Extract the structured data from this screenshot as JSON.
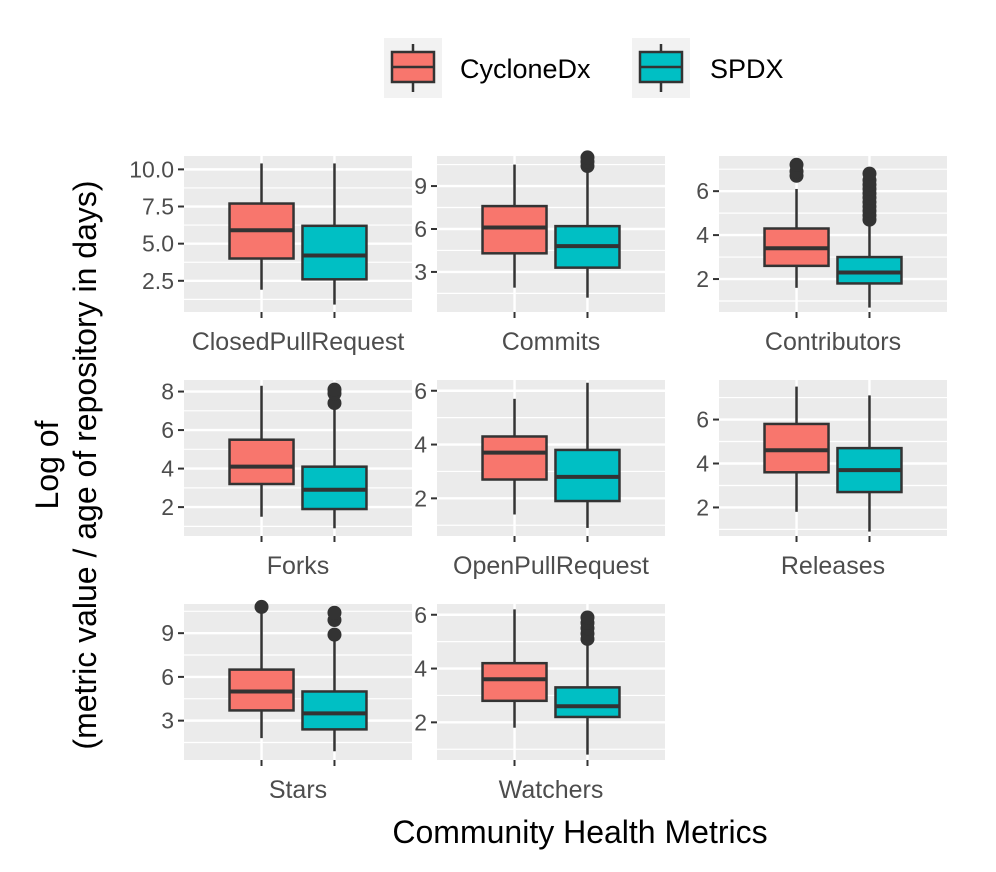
{
  "chart_data": {
    "type": "boxplot",
    "xlabel": "Community Health Metrics",
    "ylabel_line1": "Log of",
    "ylabel_line2": "(metric value / age of repository in days)",
    "colors": {
      "CycloneDx": "#f8766d",
      "SPDX": "#00bfc4",
      "panel": "#ebebeb",
      "grid": "#ffffff",
      "stroke": "#333333"
    },
    "legend": {
      "position": "top",
      "entries": [
        {
          "label": "CycloneDx",
          "color": "#f8766d"
        },
        {
          "label": "SPDX",
          "color": "#00bfc4"
        }
      ]
    },
    "panels": [
      {
        "name": "ClosedPullRequest",
        "ylim": [
          0.4,
          10.9
        ],
        "major_ticks": [
          2.5,
          5.0,
          7.5,
          10.0
        ],
        "tick_labels": [
          "2.5",
          "5.0",
          "7.5",
          "10.0"
        ],
        "minor_ticks": [
          1.25,
          3.75,
          6.25,
          8.75
        ],
        "boxes": [
          {
            "series": "CycloneDx",
            "min": 1.9,
            "q1": 4.0,
            "median": 5.9,
            "q3": 7.7,
            "max": 10.4,
            "outliers": []
          },
          {
            "series": "SPDX",
            "min": 0.9,
            "q1": 2.6,
            "median": 4.2,
            "q3": 6.2,
            "max": 10.4,
            "outliers": []
          }
        ]
      },
      {
        "name": "Commits",
        "ylim": [
          0.2,
          11.1
        ],
        "major_ticks": [
          3,
          6,
          9
        ],
        "tick_labels": [
          "3",
          "6",
          "9"
        ],
        "minor_ticks": [
          1.5,
          4.5,
          7.5,
          10.5
        ],
        "boxes": [
          {
            "series": "CycloneDx",
            "min": 1.9,
            "q1": 4.3,
            "median": 6.1,
            "q3": 7.6,
            "max": 10.5,
            "outliers": []
          },
          {
            "series": "SPDX",
            "min": 1.2,
            "q1": 3.3,
            "median": 4.8,
            "q3": 6.2,
            "max": 10.0,
            "outliers": [
              10.4,
              10.7,
              11.0
            ]
          }
        ]
      },
      {
        "name": "Contributors",
        "ylim": [
          0.5,
          7.6
        ],
        "major_ticks": [
          2,
          4,
          6
        ],
        "tick_labels": [
          "2",
          "4",
          "6"
        ],
        "minor_ticks": [
          1,
          3,
          5,
          7
        ],
        "boxes": [
          {
            "series": "CycloneDx",
            "min": 1.6,
            "q1": 2.6,
            "median": 3.4,
            "q3": 4.3,
            "max": 6.1,
            "outliers": [
              6.7,
              6.9,
              7.2
            ]
          },
          {
            "series": "SPDX",
            "min": 0.7,
            "q1": 1.8,
            "median": 2.3,
            "q3": 3.0,
            "max": 4.5,
            "outliers": [
              4.7,
              4.9,
              5.1,
              5.3,
              5.5,
              5.7,
              5.9,
              6.1,
              6.3,
              6.5,
              6.8
            ]
          }
        ]
      },
      {
        "name": "Forks",
        "ylim": [
          0.5,
          8.6
        ],
        "major_ticks": [
          2,
          4,
          6,
          8
        ],
        "tick_labels": [
          "2",
          "4",
          "6",
          "8"
        ],
        "minor_ticks": [
          1,
          3,
          5,
          7
        ],
        "boxes": [
          {
            "series": "CycloneDx",
            "min": 1.5,
            "q1": 3.2,
            "median": 4.1,
            "q3": 5.5,
            "max": 8.3,
            "outliers": []
          },
          {
            "series": "SPDX",
            "min": 0.9,
            "q1": 1.9,
            "median": 2.9,
            "q3": 4.1,
            "max": 7.2,
            "outliers": [
              7.4,
              7.9,
              8.1
            ]
          }
        ]
      },
      {
        "name": "OpenPullRequest",
        "ylim": [
          0.6,
          6.4
        ],
        "major_ticks": [
          2,
          4,
          6
        ],
        "tick_labels": [
          "2",
          "4",
          "6"
        ],
        "minor_ticks": [
          1,
          3,
          5
        ],
        "boxes": [
          {
            "series": "CycloneDx",
            "min": 1.4,
            "q1": 2.7,
            "median": 3.7,
            "q3": 4.3,
            "max": 5.7,
            "outliers": []
          },
          {
            "series": "SPDX",
            "min": 0.9,
            "q1": 1.9,
            "median": 2.8,
            "q3": 3.8,
            "max": 6.3,
            "outliers": []
          }
        ]
      },
      {
        "name": "Releases",
        "ylim": [
          0.7,
          7.8
        ],
        "major_ticks": [
          2,
          4,
          6
        ],
        "tick_labels": [
          "2",
          "4",
          "6"
        ],
        "minor_ticks": [
          1,
          3,
          5,
          7
        ],
        "boxes": [
          {
            "series": "CycloneDx",
            "min": 1.8,
            "q1": 3.6,
            "median": 4.6,
            "q3": 5.8,
            "max": 7.5,
            "outliers": []
          },
          {
            "series": "SPDX",
            "min": 0.9,
            "q1": 2.7,
            "median": 3.7,
            "q3": 4.7,
            "max": 7.1,
            "outliers": []
          }
        ]
      },
      {
        "name": "Stars",
        "ylim": [
          0.3,
          11.0
        ],
        "major_ticks": [
          3,
          6,
          9
        ],
        "tick_labels": [
          "3",
          "6",
          "9"
        ],
        "minor_ticks": [
          1.5,
          4.5,
          7.5,
          10.5
        ],
        "boxes": [
          {
            "series": "CycloneDx",
            "min": 1.8,
            "q1": 3.7,
            "median": 5.0,
            "q3": 6.5,
            "max": 10.5,
            "outliers": [
              10.8
            ]
          },
          {
            "series": "SPDX",
            "min": 0.9,
            "q1": 2.4,
            "median": 3.5,
            "q3": 5.0,
            "max": 8.5,
            "outliers": [
              8.9,
              9.9,
              10.4
            ]
          }
        ]
      },
      {
        "name": "Watchers",
        "ylim": [
          0.6,
          6.4
        ],
        "major_ticks": [
          2,
          4,
          6
        ],
        "tick_labels": [
          "2",
          "4",
          "6"
        ],
        "minor_ticks": [
          1,
          3,
          5
        ],
        "boxes": [
          {
            "series": "CycloneDx",
            "min": 1.8,
            "q1": 2.8,
            "median": 3.6,
            "q3": 4.2,
            "max": 6.2,
            "outliers": []
          },
          {
            "series": "SPDX",
            "min": 0.8,
            "q1": 2.2,
            "median": 2.6,
            "q3": 3.3,
            "max": 4.9,
            "outliers": [
              5.1,
              5.3,
              5.5,
              5.7,
              5.9
            ]
          }
        ]
      }
    ]
  }
}
